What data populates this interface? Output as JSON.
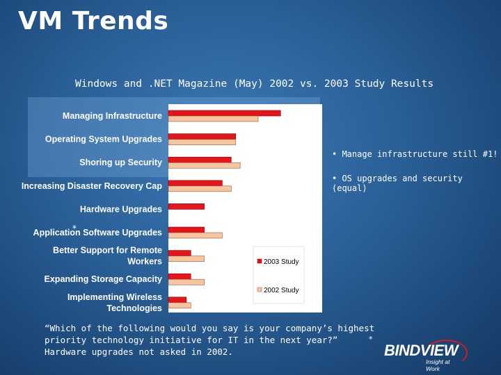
{
  "slide": {
    "title": "VM Trends",
    "subtitle": "Windows and .NET Magazine (May) 2002 vs. 2003 Study Results"
  },
  "bullets": [
    "• Manage infrastructure still #1!",
    "• OS upgrades and security (equal)"
  ],
  "question_lines": [
    "“Which of the following would you say is your company’s highest",
    "priority technology initiative for IT in the next year?”",
    "Hardware upgrades not asked in 2002."
  ],
  "footnote_marker": "*",
  "logo": {
    "brand": "BINDVIEW",
    "tagline": "Insight at Work"
  },
  "colors": {
    "series_2003": "#e8141c",
    "series_2002": "#f5c6a0",
    "plot_bg": "#ffffff"
  },
  "chart_data": {
    "type": "bar",
    "orientation": "horizontal",
    "categories": [
      [
        "Managing Infrastructure"
      ],
      [
        "Operating System Upgrades"
      ],
      [
        "Shoring up Security"
      ],
      [
        "Increasing Disaster Recovery Cap"
      ],
      [
        "Hardware Upgrades"
      ],
      [
        "Application Software Upgrades"
      ],
      [
        "Better Support for Remote",
        "Workers"
      ],
      [
        "Expanding Storage Capacity"
      ],
      [
        "Implementing Wireless",
        "Technologies"
      ]
    ],
    "category_markers": [
      "",
      "",
      "",
      "",
      "",
      "*",
      "",
      "",
      ""
    ],
    "series": [
      {
        "name": "2003 Study",
        "values": [
          25,
          15,
          14,
          12,
          8,
          8,
          5,
          5,
          4
        ]
      },
      {
        "name": "2002 Study",
        "values": [
          20,
          15,
          16,
          14,
          null,
          12,
          8,
          8,
          5
        ]
      }
    ],
    "value_suffix": "%",
    "xlim": [
      0,
      30
    ],
    "legend_position": "right"
  }
}
